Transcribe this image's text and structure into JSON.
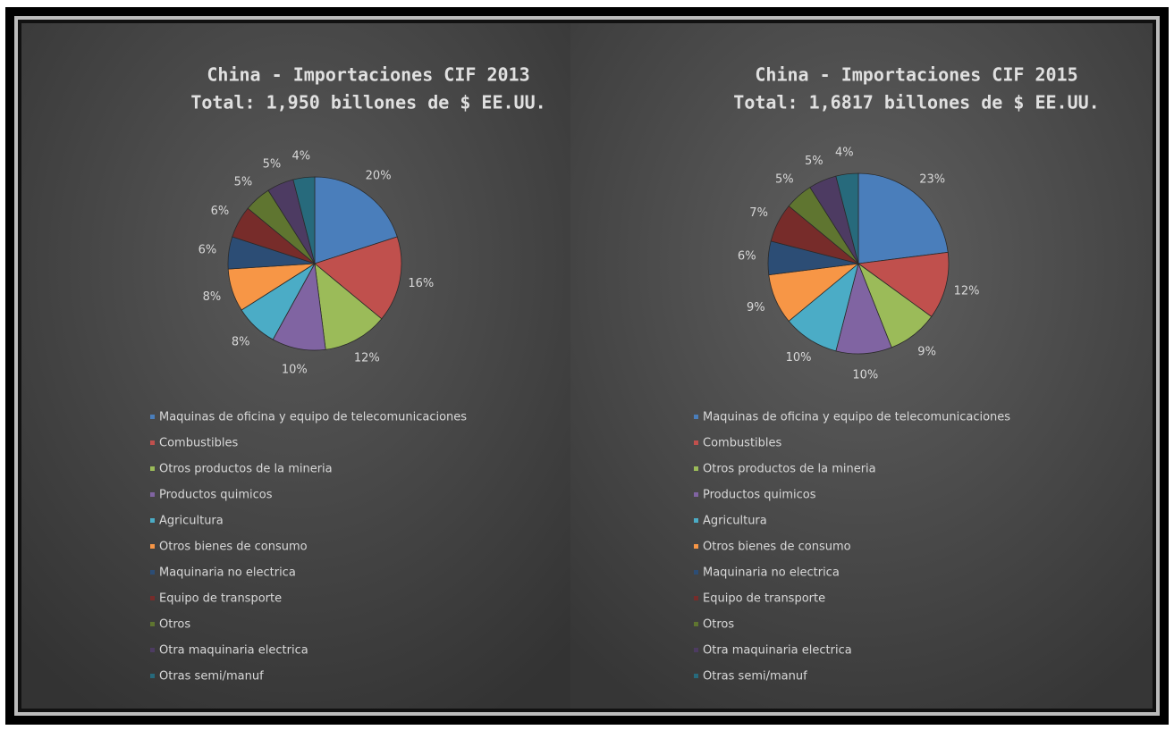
{
  "chart_data": [
    {
      "type": "pie",
      "title": "China - Importaciones CIF 2013",
      "subtitle": "Total: 1,950 billones de $ EE.UU.",
      "categories": [
        "Maquinas de oficina y equipo de telecomunicaciones",
        "Combustibles",
        "Otros productos de la mineria",
        "Productos quimicos",
        "Agricultura",
        "Otros bienes de consumo",
        "Maquinaria no electrica",
        "Equipo de transporte",
        "Otros",
        "Otra maquinaria electrica",
        "Otras semi/manuf"
      ],
      "values": [
        20,
        16,
        12,
        10,
        8,
        8,
        6,
        6,
        5,
        5,
        4
      ],
      "value_labels": [
        "20%",
        "16%",
        "12%",
        "10%",
        "8%",
        "8%",
        "6%",
        "6%",
        "5%",
        "5%",
        "4%"
      ],
      "colors": [
        "#4a7ebb",
        "#c0504d",
        "#9bbb59",
        "#8064a2",
        "#4bacc6",
        "#f79646",
        "#2c4d75",
        "#772c2a",
        "#5f7530",
        "#4d3b62",
        "#276a7c"
      ],
      "legend": "bottom"
    },
    {
      "type": "pie",
      "title": "China - Importaciones CIF 2015",
      "subtitle": "Total: 1,6817 billones de $ EE.UU.",
      "categories": [
        "Maquinas de oficina y equipo de telecomunicaciones",
        "Combustibles",
        "Otros productos de la mineria",
        "Productos quimicos",
        "Agricultura",
        "Otros bienes de consumo",
        "Maquinaria no electrica",
        "Equipo de transporte",
        "Otros",
        "Otra maquinaria electrica",
        "Otras semi/manuf"
      ],
      "values": [
        23,
        12,
        9,
        10,
        10,
        9,
        6,
        7,
        5,
        5,
        4
      ],
      "value_labels": [
        "23%",
        "12%",
        "9%",
        "10%",
        "10%",
        "9%",
        "6%",
        "7%",
        "5%",
        "5%",
        "4%"
      ],
      "colors": [
        "#4a7ebb",
        "#c0504d",
        "#9bbb59",
        "#8064a2",
        "#4bacc6",
        "#f79646",
        "#2c4d75",
        "#772c2a",
        "#5f7530",
        "#4d3b62",
        "#276a7c"
      ],
      "legend": "bottom"
    }
  ]
}
